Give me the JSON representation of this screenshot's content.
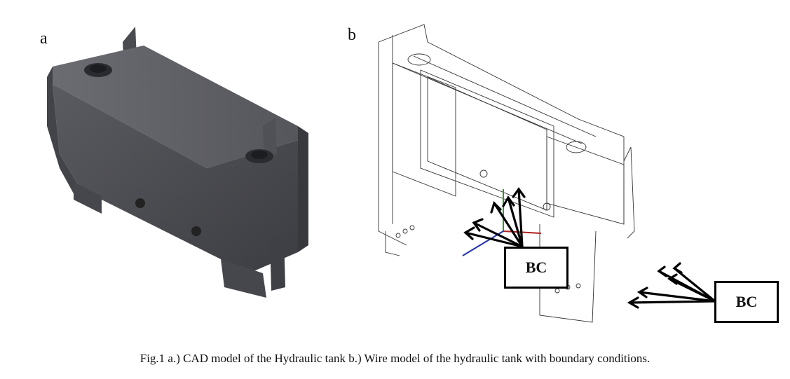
{
  "panels": {
    "a": {
      "label": "a"
    },
    "b": {
      "label": "b"
    }
  },
  "annotations": {
    "bc_primary": "BC",
    "bc_secondary": "BC"
  },
  "caption": "Fig.1 a.) CAD model of the Hydraulic tank b.) Wire model of the hydraulic tank with boundary conditions."
}
